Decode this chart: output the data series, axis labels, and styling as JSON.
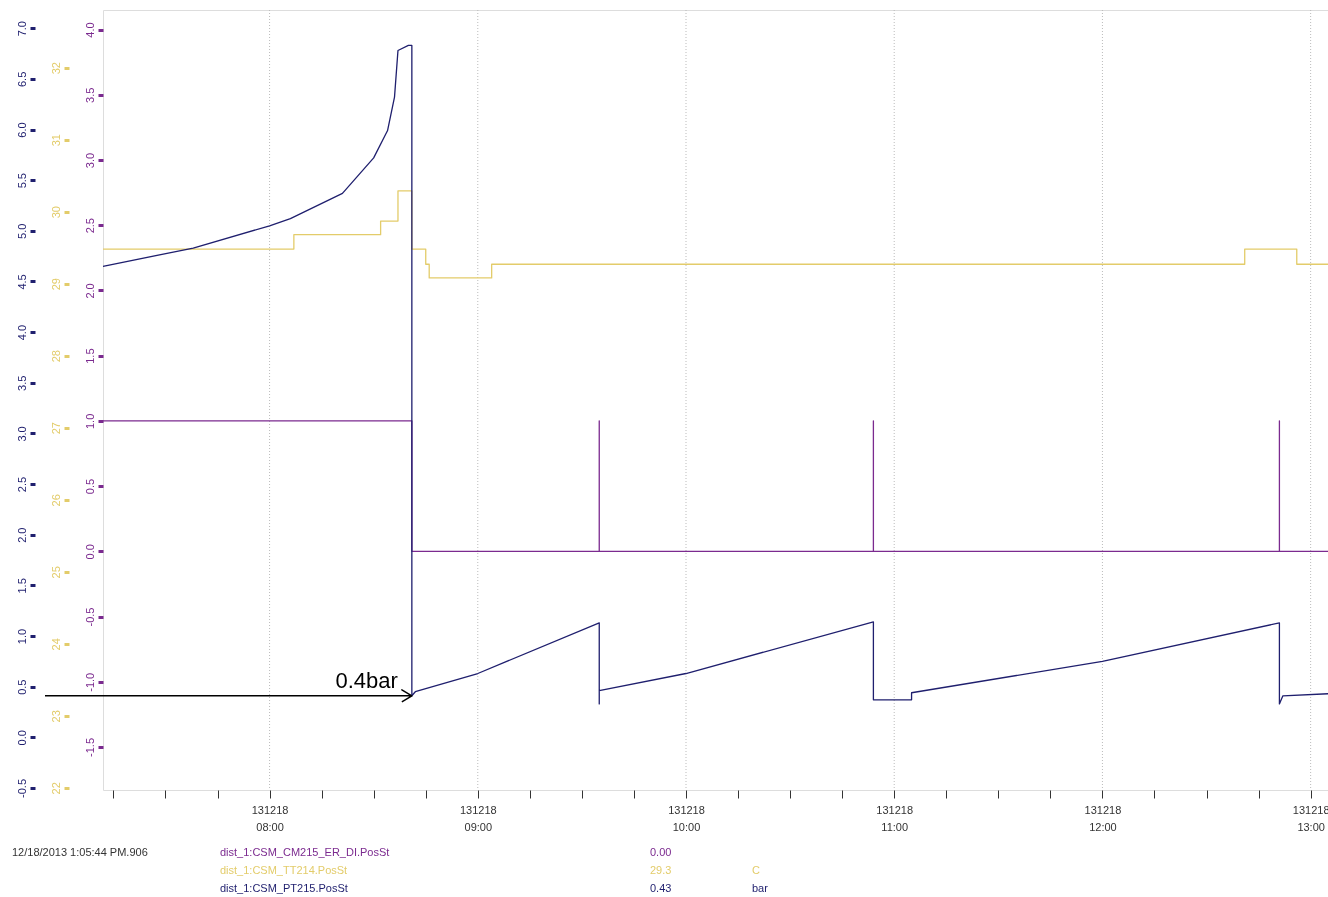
{
  "chart_data": {
    "type": "line",
    "xlim": [
      "2013-12-18T07:12",
      "2013-12-18T13:05"
    ],
    "xticks": [
      {
        "value": "2013-12-18T07:15",
        "label": null
      },
      {
        "value": "2013-12-18T07:30",
        "label": null
      },
      {
        "value": "2013-12-18T07:45",
        "label": null
      },
      {
        "value": "2013-12-18T08:00",
        "label": "131218 08:00"
      },
      {
        "value": "2013-12-18T08:15",
        "label": null
      },
      {
        "value": "2013-12-18T08:30",
        "label": null
      },
      {
        "value": "2013-12-18T08:45",
        "label": null
      },
      {
        "value": "2013-12-18T09:00",
        "label": "131218 09:00"
      },
      {
        "value": "2013-12-18T09:15",
        "label": null
      },
      {
        "value": "2013-12-18T09:30",
        "label": null
      },
      {
        "value": "2013-12-18T09:45",
        "label": null
      },
      {
        "value": "2013-12-18T10:00",
        "label": "131218 10:00"
      },
      {
        "value": "2013-12-18T10:15",
        "label": null
      },
      {
        "value": "2013-12-18T10:30",
        "label": null
      },
      {
        "value": "2013-12-18T10:45",
        "label": null
      },
      {
        "value": "2013-12-18T11:00",
        "label": "131218 11:00"
      },
      {
        "value": "2013-12-18T11:15",
        "label": null
      },
      {
        "value": "2013-12-18T11:30",
        "label": null
      },
      {
        "value": "2013-12-18T11:45",
        "label": null
      },
      {
        "value": "2013-12-18T12:00",
        "label": "131218 12:00"
      },
      {
        "value": "2013-12-18T12:15",
        "label": null
      },
      {
        "value": "2013-12-18T12:30",
        "label": null
      },
      {
        "value": "2013-12-18T12:45",
        "label": null
      },
      {
        "value": "2013-12-18T13:00",
        "label": "131218 13:00"
      }
    ],
    "ylim": [
      -0.52,
      7.18
    ],
    "yticks": [
      {
        "value": -0.5,
        "label": "-0.5"
      },
      {
        "value": 0,
        "label": "0.0"
      },
      {
        "value": 0.5,
        "label": "0.5"
      },
      {
        "value": 1,
        "label": "1.0"
      },
      {
        "value": 1.5,
        "label": "1.5"
      },
      {
        "value": 2,
        "label": "2.0"
      },
      {
        "value": 2.5,
        "label": "2.5"
      },
      {
        "value": 3,
        "label": "3.0"
      },
      {
        "value": 3.5,
        "label": "3.5"
      },
      {
        "value": 4,
        "label": "4.0"
      },
      {
        "value": 4.5,
        "label": "4.5"
      },
      {
        "value": 5,
        "label": "5.0"
      },
      {
        "value": 5.5,
        "label": "5.5"
      },
      {
        "value": 6,
        "label": "6.0"
      },
      {
        "value": 6.5,
        "label": "6.5"
      },
      {
        "value": 7,
        "label": "7.0"
      }
    ],
    "y2lim": [
      21.97,
      32.8
    ],
    "y2ticks": [
      22,
      23,
      24,
      25,
      26,
      27,
      28,
      29,
      30,
      31,
      32
    ],
    "y3lim": [
      -1.83,
      4.15
    ],
    "y3ticks": [
      {
        "value": -1.5,
        "label": "-1.5"
      },
      {
        "value": -1,
        "label": "-1.0"
      },
      {
        "value": -0.5,
        "label": "-0.5"
      },
      {
        "value": 0,
        "label": "0.0"
      },
      {
        "value": 0.5,
        "label": "0.5"
      },
      {
        "value": 1,
        "label": "1.0"
      },
      {
        "value": 1.5,
        "label": "1.5"
      },
      {
        "value": 2,
        "label": "2.0"
      },
      {
        "value": 2.5,
        "label": "2.5"
      },
      {
        "value": 3,
        "label": "3.0"
      },
      {
        "value": 3.5,
        "label": "3.5"
      },
      {
        "value": 4,
        "label": "4.0"
      }
    ],
    "grid": "x",
    "legend": "bottom",
    "marker": "none",
    "line_style": "solid",
    "series": [
      {
        "name": "dist_1:CSM_CM215_ER_DI.PosSt",
        "color": "#7b2a8f",
        "type": "step",
        "axis": "y3",
        "x": [
          "2013-12-18T07:12",
          "2013-12-18T08:41",
          "2013-12-18T09:35",
          "2013-12-18T09:35",
          "2013-12-18T10:54",
          "2013-12-18T10:54",
          "2013-12-18T12:51",
          "2013-12-18T12:51",
          "2013-12-18T13:05"
        ],
        "values": [
          1,
          0,
          1,
          0,
          1,
          0,
          1,
          0,
          0
        ]
      },
      {
        "name": "dist_1:CSM_TT214.PosSt",
        "color": "#e3cc6a",
        "type": "step",
        "axis": "y2",
        "x": [
          "2013-12-18T07:12",
          "2013-12-18T08:07",
          "2013-12-18T08:32",
          "2013-12-18T08:37",
          "2013-12-18T08:41",
          "2013-12-18T08:45",
          "2013-12-18T08:46",
          "2013-12-18T09:04",
          "2013-12-18T12:41",
          "2013-12-18T12:56",
          "2013-12-18T13:05"
        ],
        "values": [
          29.48,
          29.68,
          29.87,
          30.29,
          29.48,
          29.27,
          29.08,
          29.27,
          29.48,
          29.27,
          29.27
        ]
      },
      {
        "name": "dist_1:CSM_PT215.PosSt",
        "color": "#1f1f6e",
        "type": "line",
        "axis": "y",
        "x": [
          "2013-12-18T07:12",
          "2013-12-18T07:38",
          "2013-12-18T08:00",
          "2013-12-18T08:06",
          "2013-12-18T08:21",
          "2013-12-18T08:30",
          "2013-12-18T08:34",
          "2013-12-18T08:36",
          "2013-12-18T08:37",
          "2013-12-18T08:40",
          "2013-12-18T08:41",
          "2013-12-18T08:41",
          "2013-12-18T08:42",
          "2013-12-18T09:00",
          "2013-12-18T09:35",
          "2013-12-18T09:35",
          "2013-12-18T09:35",
          "2013-12-18T10:00",
          "2013-12-18T10:54",
          "2013-12-18T10:54",
          "2013-12-18T11:05",
          "2013-12-18T11:05",
          "2013-12-18T12:00",
          "2013-12-18T12:51",
          "2013-12-18T12:51",
          "2013-12-18T12:52",
          "2013-12-18T13:05"
        ],
        "values": [
          4.65,
          4.83,
          5.05,
          5.12,
          5.37,
          5.72,
          5.99,
          6.32,
          6.78,
          6.83,
          6.83,
          0.41,
          0.45,
          0.63,
          1.13,
          0.33,
          0.46,
          0.63,
          1.14,
          0.37,
          0.37,
          0.44,
          0.75,
          1.13,
          0.33,
          0.41,
          0.43
        ]
      }
    ],
    "annotations": [
      "12/18/2013 1:05:44 PM.906",
      {
        "text": "0.4bar",
        "x": "2013-12-18T08:41",
        "y": 0.41
      },
      "0.00",
      "29.3",
      "0.43",
      "C",
      "bar"
    ]
  }
}
